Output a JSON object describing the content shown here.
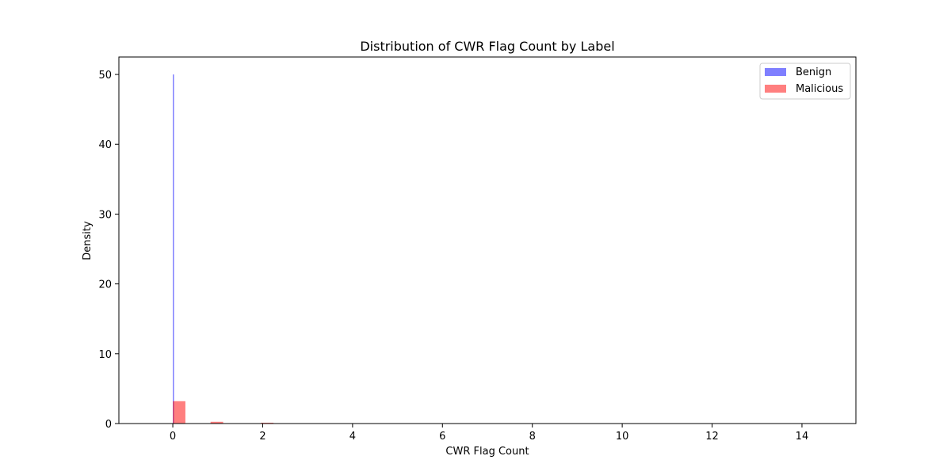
{
  "chart_data": {
    "type": "histogram",
    "title": "Distribution of CWR Flag Count by Label",
    "xlabel": "CWR Flag Count",
    "ylabel": "Density",
    "xlim": [
      -1.2,
      15.2
    ],
    "ylim": [
      0,
      52.5
    ],
    "xticks": [
      0,
      2,
      4,
      6,
      8,
      10,
      12,
      14
    ],
    "yticks": [
      0,
      10,
      20,
      30,
      40,
      50
    ],
    "legend_position": "top-right",
    "grid": false,
    "series": [
      {
        "name": "Benign",
        "color": "#0000ff",
        "alpha": 0.5,
        "bins": [
          {
            "x0": 0.0,
            "x1": 0.02,
            "density": 50.0
          }
        ]
      },
      {
        "name": "Malicious",
        "color": "#ff0000",
        "alpha": 0.5,
        "bins": [
          {
            "x0": 0.0,
            "x1": 0.28,
            "density": 3.2
          },
          {
            "x0": 0.84,
            "x1": 1.12,
            "density": 0.25
          },
          {
            "x0": 1.96,
            "x1": 2.24,
            "density": 0.12
          },
          {
            "x0": 3.92,
            "x1": 4.2,
            "density": 0.01
          },
          {
            "x0": 5.88,
            "x1": 6.16,
            "density": 0.005
          },
          {
            "x0": 7.84,
            "x1": 8.12,
            "density": 0.003
          },
          {
            "x0": 13.72,
            "x1": 14.0,
            "density": 0.001
          }
        ]
      }
    ]
  }
}
